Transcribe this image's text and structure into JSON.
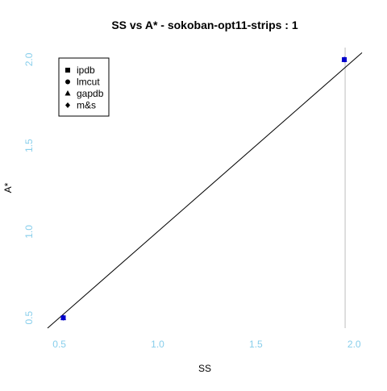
{
  "chart_data": {
    "type": "scatter",
    "title": "SS vs A* - sokoban-opt11-strips : 1",
    "xlabel": "SS",
    "ylabel": "A*",
    "xlim": [
      0.44,
      2.04
    ],
    "ylim": [
      0.44,
      2.07
    ],
    "xticks": [
      "0.5",
      "1.0",
      "1.5",
      "2.0"
    ],
    "yticks": [
      "0.5",
      "1.0",
      "1.5",
      "2.0"
    ],
    "tick_color": "#87CEEB",
    "point_color": "#0000CC",
    "grid": false,
    "reference_line": "y = x",
    "vertical_line_color": "#BEBEBE",
    "legend_position": "top-left",
    "series": [
      {
        "name": "ipdb",
        "marker": "square",
        "points": [
          [
            0.52,
            0.5
          ],
          [
            1.95,
            2.0
          ]
        ]
      },
      {
        "name": "lmcut",
        "marker": "circle",
        "points": [
          [
            0.52,
            0.5
          ],
          [
            1.95,
            2.0
          ]
        ]
      },
      {
        "name": "gapdb",
        "marker": "triangle",
        "points": [
          [
            0.52,
            0.5
          ],
          [
            1.95,
            2.0
          ]
        ]
      },
      {
        "name": "m&s",
        "marker": "diamond",
        "points": [
          [
            0.52,
            0.5
          ],
          [
            1.95,
            2.0
          ]
        ]
      }
    ]
  }
}
